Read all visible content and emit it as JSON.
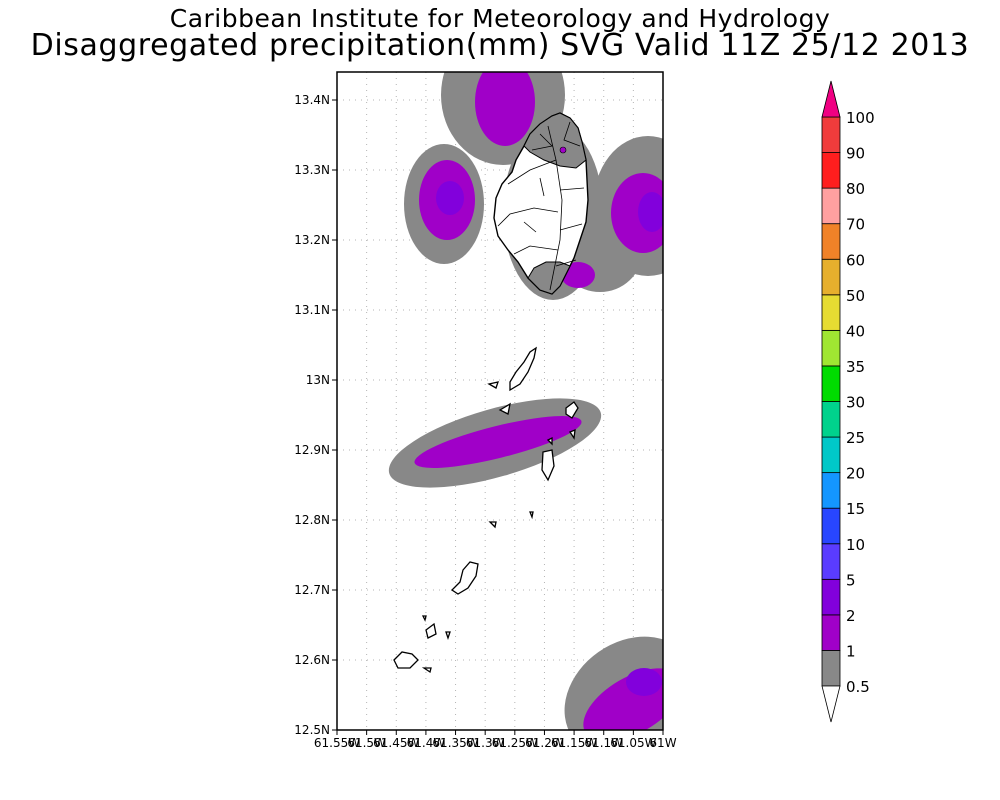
{
  "title": {
    "line1": "Caribbean Institute for Meteorology and Hydrology",
    "line2": "Disaggregated precipitation(mm) SVG Valid 11Z 25/12 2013"
  },
  "map": {
    "lat_labels": [
      {
        "lat": 13.4,
        "label": "13.4N"
      },
      {
        "lat": 13.3,
        "label": "13.3N"
      },
      {
        "lat": 13.2,
        "label": "13.2N"
      },
      {
        "lat": 13.1,
        "label": "13.1N"
      },
      {
        "lat": 13.0,
        "label": "13N"
      },
      {
        "lat": 12.9,
        "label": "12.9N"
      },
      {
        "lat": 12.8,
        "label": "12.8N"
      },
      {
        "lat": 12.7,
        "label": "12.7N"
      },
      {
        "lat": 12.6,
        "label": "12.6N"
      },
      {
        "lat": 12.5,
        "label": "12.5N"
      }
    ],
    "lon_labels": [
      {
        "lon": -61.55,
        "label": "61.55W"
      },
      {
        "lon": -61.5,
        "label": "61.5W"
      },
      {
        "lon": -61.45,
        "label": "61.45W"
      },
      {
        "lon": -61.4,
        "label": "61.4W"
      },
      {
        "lon": -61.35,
        "label": "61.35W"
      },
      {
        "lon": -61.3,
        "label": "61.3W"
      },
      {
        "lon": -61.25,
        "label": "61.25W"
      },
      {
        "lon": -61.2,
        "label": "61.2W"
      },
      {
        "lon": -61.15,
        "label": "61.15W"
      },
      {
        "lon": -61.1,
        "label": "61.1W"
      },
      {
        "lon": -61.05,
        "label": "61.05W"
      },
      {
        "lon": -61.0,
        "label": "61W"
      }
    ],
    "lat_range": [
      12.5,
      13.44
    ],
    "lon_range": [
      -61.55,
      -61.0
    ]
  },
  "colorbar": {
    "levels": [
      "0.5",
      "1",
      "2",
      "5",
      "10",
      "15",
      "20",
      "25",
      "30",
      "35",
      "40",
      "50",
      "60",
      "70",
      "80",
      "90",
      "100"
    ],
    "colors": {
      "below": "#ffffff",
      "bins": [
        "#888888",
        "#a000c8",
        "#8200dc",
        "#5a3cff",
        "#2846ff",
        "#1496ff",
        "#00c8c8",
        "#00d28c",
        "#00dc00",
        "#a0e632",
        "#e6dc32",
        "#e6af2d",
        "#f08228",
        "#ffa0a0",
        "#ff1e1e",
        "#f03c3c"
      ],
      "above": "#f00082"
    }
  }
}
